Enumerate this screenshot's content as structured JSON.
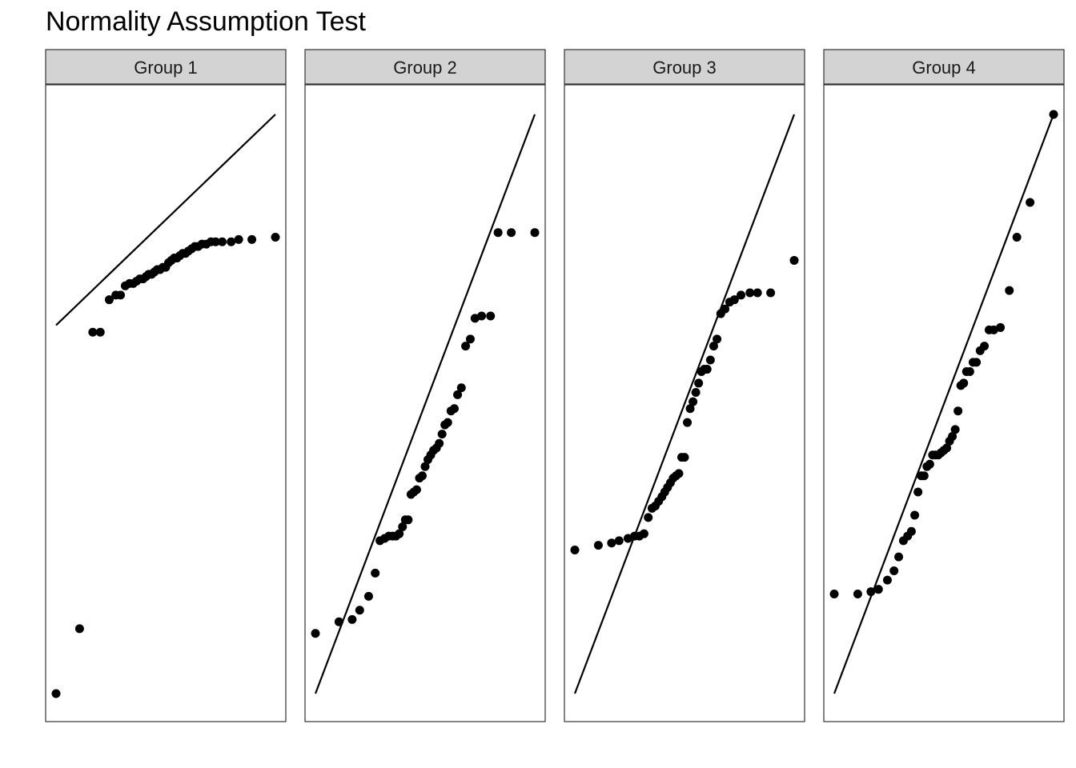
{
  "chart_data": {
    "type": "scatter",
    "title": "Normality Assumption Test",
    "xlabel": "",
    "ylabel": "",
    "grid": false,
    "x_axis_shown": false,
    "y_axis_shown": false,
    "shared_y": true,
    "reference_line_color": "#000000",
    "point_color": "#000000",
    "strip_color": "#d3d3d3",
    "panels": [
      {
        "name": "Group 1",
        "line": [
          [
            -2.33,
            0.69
          ],
          [
            2.33,
            1.6
          ]
        ],
        "points": [
          [
            -2.33,
            -0.9
          ],
          [
            -1.83,
            -0.62
          ],
          [
            -1.55,
            0.66
          ],
          [
            -1.39,
            0.66
          ],
          [
            -1.2,
            0.8
          ],
          [
            -1.06,
            0.82
          ],
          [
            -0.96,
            0.82
          ],
          [
            -0.86,
            0.86
          ],
          [
            -0.77,
            0.87
          ],
          [
            -0.69,
            0.87
          ],
          [
            -0.62,
            0.88
          ],
          [
            -0.55,
            0.89
          ],
          [
            -0.48,
            0.89
          ],
          [
            -0.42,
            0.9
          ],
          [
            -0.36,
            0.91
          ],
          [
            -0.3,
            0.91
          ],
          [
            -0.24,
            0.92
          ],
          [
            -0.18,
            0.93
          ],
          [
            -0.12,
            0.93
          ],
          [
            -0.06,
            0.94
          ],
          [
            0.0,
            0.94
          ],
          [
            0.06,
            0.96
          ],
          [
            0.12,
            0.97
          ],
          [
            0.18,
            0.98
          ],
          [
            0.24,
            0.98
          ],
          [
            0.3,
            0.99
          ],
          [
            0.36,
            1.0
          ],
          [
            0.42,
            1.0
          ],
          [
            0.48,
            1.01
          ],
          [
            0.55,
            1.02
          ],
          [
            0.62,
            1.03
          ],
          [
            0.69,
            1.03
          ],
          [
            0.77,
            1.04
          ],
          [
            0.86,
            1.04
          ],
          [
            0.96,
            1.05
          ],
          [
            1.06,
            1.05
          ],
          [
            1.2,
            1.05
          ],
          [
            1.39,
            1.05
          ],
          [
            1.55,
            1.06
          ],
          [
            1.83,
            1.06
          ],
          [
            2.33,
            1.07
          ]
        ]
      },
      {
        "name": "Group 2",
        "line": [
          [
            -2.33,
            -0.9
          ],
          [
            2.33,
            1.6
          ]
        ],
        "points": [
          [
            -2.33,
            -0.64
          ],
          [
            -1.83,
            -0.59
          ],
          [
            -1.55,
            -0.58
          ],
          [
            -1.39,
            -0.54
          ],
          [
            -1.2,
            -0.48
          ],
          [
            -1.06,
            -0.38
          ],
          [
            -0.96,
            -0.24
          ],
          [
            -0.86,
            -0.23
          ],
          [
            -0.77,
            -0.22
          ],
          [
            -0.69,
            -0.22
          ],
          [
            -0.62,
            -0.22
          ],
          [
            -0.55,
            -0.21
          ],
          [
            -0.48,
            -0.18
          ],
          [
            -0.42,
            -0.15
          ],
          [
            -0.36,
            -0.15
          ],
          [
            -0.3,
            -0.04
          ],
          [
            -0.24,
            -0.03
          ],
          [
            -0.18,
            -0.02
          ],
          [
            -0.12,
            0.03
          ],
          [
            -0.06,
            0.04
          ],
          [
            0.0,
            0.08
          ],
          [
            0.06,
            0.11
          ],
          [
            0.12,
            0.13
          ],
          [
            0.18,
            0.15
          ],
          [
            0.24,
            0.16
          ],
          [
            0.3,
            0.18
          ],
          [
            0.36,
            0.22
          ],
          [
            0.42,
            0.26
          ],
          [
            0.48,
            0.27
          ],
          [
            0.55,
            0.32
          ],
          [
            0.62,
            0.33
          ],
          [
            0.69,
            0.39
          ],
          [
            0.77,
            0.42
          ],
          [
            0.86,
            0.6
          ],
          [
            0.96,
            0.63
          ],
          [
            1.06,
            0.72
          ],
          [
            1.2,
            0.73
          ],
          [
            1.39,
            0.73
          ],
          [
            1.55,
            1.09
          ],
          [
            1.83,
            1.09
          ],
          [
            2.33,
            1.09
          ]
        ]
      },
      {
        "name": "Group 3",
        "line": [
          [
            -2.33,
            -0.9
          ],
          [
            2.33,
            1.6
          ]
        ],
        "points": [
          [
            -2.33,
            -0.28
          ],
          [
            -1.83,
            -0.26
          ],
          [
            -1.55,
            -0.25
          ],
          [
            -1.39,
            -0.24
          ],
          [
            -1.2,
            -0.23
          ],
          [
            -1.06,
            -0.22
          ],
          [
            -0.96,
            -0.22
          ],
          [
            -0.86,
            -0.21
          ],
          [
            -0.77,
            -0.14
          ],
          [
            -0.69,
            -0.1
          ],
          [
            -0.62,
            -0.09
          ],
          [
            -0.55,
            -0.07
          ],
          [
            -0.48,
            -0.05
          ],
          [
            -0.42,
            -0.03
          ],
          [
            -0.36,
            -0.01
          ],
          [
            -0.3,
            0.01
          ],
          [
            -0.24,
            0.03
          ],
          [
            -0.18,
            0.04
          ],
          [
            -0.12,
            0.05
          ],
          [
            -0.06,
            0.12
          ],
          [
            0.0,
            0.12
          ],
          [
            0.06,
            0.27
          ],
          [
            0.12,
            0.33
          ],
          [
            0.18,
            0.36
          ],
          [
            0.24,
            0.4
          ],
          [
            0.3,
            0.44
          ],
          [
            0.36,
            0.49
          ],
          [
            0.42,
            0.5
          ],
          [
            0.48,
            0.5
          ],
          [
            0.55,
            0.54
          ],
          [
            0.62,
            0.6
          ],
          [
            0.69,
            0.63
          ],
          [
            0.77,
            0.74
          ],
          [
            0.86,
            0.76
          ],
          [
            0.96,
            0.79
          ],
          [
            1.06,
            0.8
          ],
          [
            1.2,
            0.82
          ],
          [
            1.39,
            0.83
          ],
          [
            1.55,
            0.83
          ],
          [
            1.83,
            0.83
          ],
          [
            2.33,
            0.97
          ]
        ]
      },
      {
        "name": "Group 4",
        "line": [
          [
            -2.33,
            -0.9
          ],
          [
            2.33,
            1.6
          ]
        ],
        "points": [
          [
            -2.33,
            -0.47
          ],
          [
            -1.83,
            -0.47
          ],
          [
            -1.55,
            -0.46
          ],
          [
            -1.39,
            -0.45
          ],
          [
            -1.2,
            -0.41
          ],
          [
            -1.06,
            -0.37
          ],
          [
            -0.96,
            -0.31
          ],
          [
            -0.86,
            -0.24
          ],
          [
            -0.77,
            -0.22
          ],
          [
            -0.69,
            -0.2
          ],
          [
            -0.62,
            -0.13
          ],
          [
            -0.55,
            -0.03
          ],
          [
            -0.48,
            0.04
          ],
          [
            -0.42,
            0.04
          ],
          [
            -0.36,
            0.08
          ],
          [
            -0.3,
            0.09
          ],
          [
            -0.24,
            0.13
          ],
          [
            -0.18,
            0.13
          ],
          [
            -0.12,
            0.13
          ],
          [
            -0.06,
            0.14
          ],
          [
            0.0,
            0.15
          ],
          [
            0.06,
            0.16
          ],
          [
            0.12,
            0.19
          ],
          [
            0.18,
            0.21
          ],
          [
            0.24,
            0.24
          ],
          [
            0.3,
            0.32
          ],
          [
            0.36,
            0.43
          ],
          [
            0.42,
            0.44
          ],
          [
            0.48,
            0.49
          ],
          [
            0.55,
            0.49
          ],
          [
            0.62,
            0.53
          ],
          [
            0.69,
            0.53
          ],
          [
            0.77,
            0.58
          ],
          [
            0.86,
            0.6
          ],
          [
            0.96,
            0.67
          ],
          [
            1.06,
            0.67
          ],
          [
            1.2,
            0.68
          ],
          [
            1.39,
            0.84
          ],
          [
            1.55,
            1.07
          ],
          [
            1.83,
            1.22
          ],
          [
            2.33,
            1.6
          ]
        ]
      }
    ]
  }
}
